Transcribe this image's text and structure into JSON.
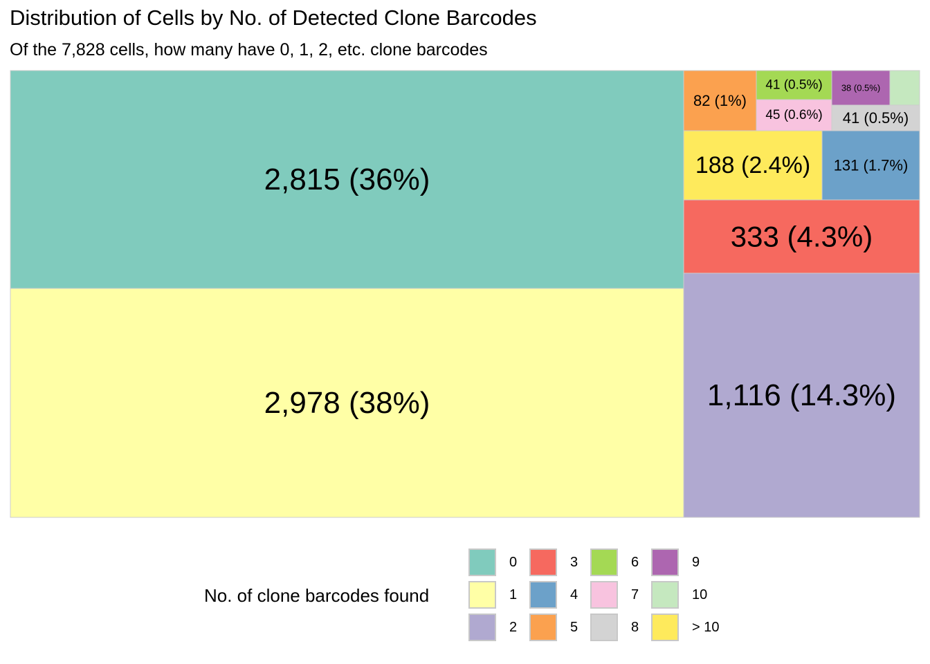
{
  "chart_data": {
    "type": "treemap",
    "title": "Distribution of Cells by No. of Detected Clone Barcodes",
    "subtitle": "Of the 7,828 cells, how many have 0, 1, 2, etc. clone barcodes",
    "legend_title": "No. of clone barcodes found",
    "legend_position": "bottom",
    "series": [
      {
        "category": "0",
        "value": 2815,
        "label": "2,815 (36%)",
        "color": "#80CBBD"
      },
      {
        "category": "1",
        "value": 2978,
        "label": "2,978 (38%)",
        "color": "#FFFFA6"
      },
      {
        "category": "2",
        "value": 1116,
        "label": "1,116 (14.3%)",
        "color": "#B0A9D0"
      },
      {
        "category": "3",
        "value": 333,
        "label": "333 (4.3%)",
        "color": "#F6695F"
      },
      {
        "category": "4",
        "value": 131,
        "label": "131 (1.7%)",
        "color": "#6CA1C9"
      },
      {
        "category": "5",
        "value": 82,
        "label": "82 (1%)",
        "color": "#FBA14F"
      },
      {
        "category": "6",
        "value": 41,
        "label": "41 (0.5%)",
        "color": "#A4D954"
      },
      {
        "category": "7",
        "value": 45,
        "label": "45 (0.6%)",
        "color": "#F8C3DF"
      },
      {
        "category": "8",
        "value": 41,
        "label": "41 (0.5%)",
        "color": "#D3D3D3"
      },
      {
        "category": "9",
        "value": 38,
        "label": "38 (0.5%)",
        "color": "#AD66B0"
      },
      {
        "category": "10",
        "value": null,
        "label": "",
        "color": "#C5E8BF"
      },
      {
        "category": "> 10",
        "value": 188,
        "label": "188 (2.4%)",
        "color": "#FEEA5C"
      }
    ]
  }
}
